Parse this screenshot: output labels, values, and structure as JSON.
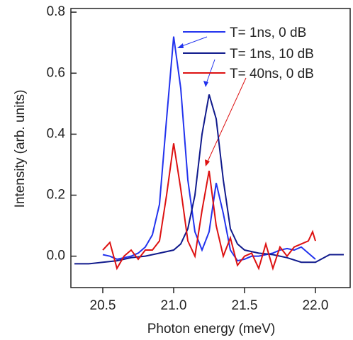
{
  "chart_data": {
    "type": "line",
    "xlabel": "Photon energy (meV)",
    "ylabel": "Intensity (arb. units)",
    "xlim": [
      20.275,
      22.245
    ],
    "ylim": [
      -0.103,
      0.812
    ],
    "xticks": [
      {
        "value": 20.5,
        "label": "20.5"
      },
      {
        "value": 21,
        "label": "21.0"
      },
      {
        "value": 21.5,
        "label": "21.5"
      },
      {
        "value": 22,
        "label": "22.0"
      }
    ],
    "yticks": [
      {
        "value": 0,
        "label": "0.0"
      },
      {
        "value": 0.2,
        "label": "0.2"
      },
      {
        "value": 0.4,
        "label": "0.4"
      },
      {
        "value": 0.6,
        "label": "0.6"
      },
      {
        "value": 0.8,
        "label": "0.8"
      }
    ],
    "series": [
      {
        "name": "T= 1ns, 0 dB",
        "color": "#2233ee",
        "x": [
          20.5,
          20.55,
          20.6,
          20.65,
          20.7,
          20.75,
          20.8,
          20.85,
          20.9,
          20.95,
          21.0,
          21.05,
          21.1,
          21.15,
          21.2,
          21.25,
          21.3,
          21.35,
          21.4,
          21.45,
          21.5,
          21.55,
          21.6,
          21.65,
          21.7,
          21.75,
          21.8,
          21.85,
          21.9,
          21.95,
          22.0
        ],
        "values": [
          0.005,
          0.0,
          -0.01,
          -0.005,
          0.0,
          0.01,
          0.03,
          0.07,
          0.17,
          0.45,
          0.72,
          0.55,
          0.25,
          0.08,
          0.02,
          0.08,
          0.24,
          0.14,
          0.02,
          -0.015,
          -0.01,
          0.0,
          0.0,
          0.005,
          0.01,
          0.02,
          0.025,
          0.02,
          0.03,
          0.01,
          -0.01
        ]
      },
      {
        "name": "T= 1ns, 10 dB",
        "color": "#101a8c",
        "x": [
          20.3,
          20.4,
          20.5,
          20.6,
          20.7,
          20.8,
          20.9,
          21.0,
          21.05,
          21.1,
          21.15,
          21.2,
          21.25,
          21.3,
          21.35,
          21.4,
          21.45,
          21.5,
          21.6,
          21.7,
          21.8,
          21.9,
          22.0,
          22.1,
          22.2
        ],
        "values": [
          -0.025,
          -0.025,
          -0.02,
          -0.015,
          -0.005,
          0.0,
          0.01,
          0.02,
          0.04,
          0.09,
          0.2,
          0.4,
          0.53,
          0.45,
          0.25,
          0.09,
          0.04,
          0.02,
          0.01,
          0.005,
          -0.005,
          -0.02,
          -0.02,
          0.005,
          0.005
        ]
      },
      {
        "name": "T= 40ns, 0 dB",
        "color": "#dd1111",
        "x": [
          20.5,
          20.55,
          20.6,
          20.65,
          20.7,
          20.75,
          20.8,
          20.85,
          20.9,
          20.95,
          21.0,
          21.05,
          21.1,
          21.15,
          21.2,
          21.25,
          21.3,
          21.35,
          21.4,
          21.45,
          21.5,
          21.55,
          21.6,
          21.65,
          21.7,
          21.75,
          21.8,
          21.85,
          21.9,
          21.95,
          21.98,
          22.0
        ],
        "values": [
          0.02,
          0.045,
          -0.04,
          0.0,
          0.02,
          -0.01,
          0.02,
          0.02,
          0.05,
          0.2,
          0.37,
          0.22,
          0.05,
          0.0,
          0.15,
          0.28,
          0.1,
          0.0,
          0.06,
          -0.03,
          0.0,
          0.01,
          -0.04,
          0.04,
          -0.04,
          0.03,
          0.0,
          0.03,
          0.04,
          0.05,
          0.08,
          0.05
        ]
      }
    ]
  }
}
